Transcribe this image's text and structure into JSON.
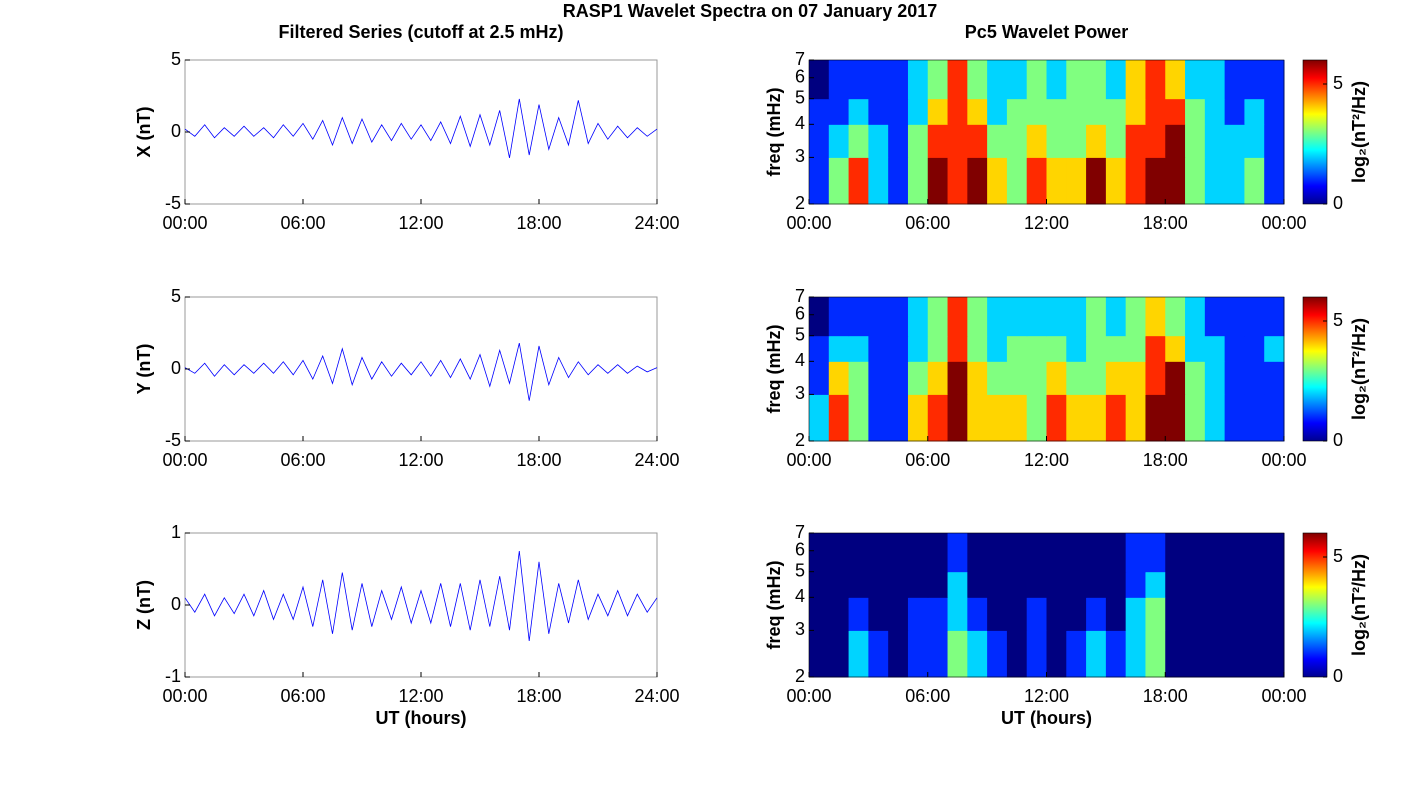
{
  "title": "RASP1 Wavelet Spectra on 07 January 2017",
  "chart_data": [
    {
      "type": "line",
      "title": "Filtered Series (cutoff at 2.5 mHz)",
      "ylabel": "X (nT)",
      "xlim": [
        0,
        24
      ],
      "xticks": [
        {
          "value": 0,
          "label": "00:00"
        },
        {
          "value": 6,
          "label": "06:00"
        },
        {
          "value": 12,
          "label": "12:00"
        },
        {
          "value": 18,
          "label": "18:00"
        },
        {
          "value": 24,
          "label": "24:00"
        }
      ],
      "ylim": [
        -5,
        5
      ],
      "yticks": [
        -5,
        0,
        5
      ],
      "x": [
        0,
        0.5,
        1,
        1.5,
        2,
        2.5,
        3,
        3.5,
        4,
        4.5,
        5,
        5.5,
        6,
        6.5,
        7,
        7.5,
        8,
        8.5,
        9,
        9.5,
        10,
        10.5,
        11,
        11.5,
        12,
        12.5,
        13,
        13.5,
        14,
        14.5,
        15,
        15.5,
        16,
        16.5,
        17,
        17.5,
        18,
        18.5,
        19,
        19.5,
        20,
        20.5,
        21,
        21.5,
        22,
        22.5,
        23,
        23.5,
        24
      ],
      "series": [
        {
          "color": "#0000ff",
          "values": [
            0.2,
            -0.3,
            0.5,
            -0.4,
            0.3,
            -0.3,
            0.4,
            -0.3,
            0.3,
            -0.4,
            0.5,
            -0.3,
            0.6,
            -0.5,
            0.8,
            -0.9,
            1.0,
            -0.8,
            0.9,
            -0.7,
            0.5,
            -0.6,
            0.6,
            -0.5,
            0.5,
            -0.6,
            0.7,
            -0.8,
            1.1,
            -1.0,
            1.2,
            -0.9,
            1.5,
            -1.8,
            2.3,
            -1.6,
            1.9,
            -1.2,
            1.0,
            -0.9,
            2.2,
            -0.8,
            0.6,
            -0.5,
            0.4,
            -0.4,
            0.3,
            -0.3,
            0.2
          ]
        }
      ]
    },
    {
      "type": "heatmap",
      "title": "Pc5 Wavelet Power",
      "ylabel": "freq (mHz)",
      "log_y": true,
      "xlim": [
        0,
        24
      ],
      "xticks": [
        {
          "value": 0,
          "label": "00:00"
        },
        {
          "value": 6,
          "label": "06:00"
        },
        {
          "value": 12,
          "label": "12:00"
        },
        {
          "value": 18,
          "label": "18:00"
        },
        {
          "value": 24,
          "label": "00:00"
        }
      ],
      "ylim": [
        2,
        7
      ],
      "yticks": [
        2,
        3,
        4,
        5,
        6,
        7
      ],
      "xbins": [
        0,
        1,
        2,
        3,
        4,
        5,
        6,
        7,
        8,
        9,
        10,
        11,
        12,
        13,
        14,
        15,
        16,
        17,
        18,
        19,
        20,
        21,
        22,
        23,
        24
      ],
      "ybins": [
        2,
        3,
        4,
        5,
        7
      ],
      "colormap": "jet",
      "clim": [
        0,
        6
      ],
      "cticks": [
        0,
        5
      ],
      "clabel": "log₂(nT²/Hz)",
      "values": [
        [
          1,
          3,
          5,
          2,
          1,
          3,
          6,
          5,
          6,
          4,
          3,
          5,
          4,
          4,
          6,
          4,
          5,
          6,
          6,
          3,
          2,
          2,
          3,
          1
        ],
        [
          1,
          2,
          3,
          2,
          1,
          3,
          5,
          5,
          5,
          3,
          3,
          4,
          3,
          3,
          4,
          3,
          5,
          5,
          6,
          3,
          2,
          2,
          2,
          1
        ],
        [
          1,
          1,
          2,
          1,
          1,
          2,
          4,
          5,
          4,
          2,
          3,
          3,
          3,
          3,
          3,
          3,
          4,
          5,
          5,
          3,
          2,
          1,
          2,
          1
        ],
        [
          0,
          1,
          1,
          1,
          1,
          2,
          3,
          5,
          3,
          2,
          2,
          3,
          2,
          3,
          3,
          2,
          4,
          5,
          4,
          2,
          2,
          1,
          1,
          1
        ]
      ]
    },
    {
      "type": "line",
      "ylabel": "Y (nT)",
      "xlim": [
        0,
        24
      ],
      "xticks": [
        {
          "value": 0,
          "label": "00:00"
        },
        {
          "value": 6,
          "label": "06:00"
        },
        {
          "value": 12,
          "label": "12:00"
        },
        {
          "value": 18,
          "label": "18:00"
        },
        {
          "value": 24,
          "label": "24:00"
        }
      ],
      "ylim": [
        -5,
        5
      ],
      "yticks": [
        -5,
        0,
        5
      ],
      "x": [
        0,
        0.5,
        1,
        1.5,
        2,
        2.5,
        3,
        3.5,
        4,
        4.5,
        5,
        5.5,
        6,
        6.5,
        7,
        7.5,
        8,
        8.5,
        9,
        9.5,
        10,
        10.5,
        11,
        11.5,
        12,
        12.5,
        13,
        13.5,
        14,
        14.5,
        15,
        15.5,
        16,
        16.5,
        17,
        17.5,
        18,
        18.5,
        19,
        19.5,
        20,
        20.5,
        21,
        21.5,
        22,
        22.5,
        23,
        23.5,
        24
      ],
      "series": [
        {
          "color": "#0000ff",
          "values": [
            0.1,
            -0.3,
            0.4,
            -0.5,
            0.3,
            -0.4,
            0.3,
            -0.3,
            0.4,
            -0.3,
            0.5,
            -0.4,
            0.6,
            -0.7,
            0.9,
            -1.0,
            1.4,
            -1.1,
            0.8,
            -0.7,
            0.5,
            -0.5,
            0.4,
            -0.4,
            0.5,
            -0.5,
            0.6,
            -0.6,
            0.7,
            -0.7,
            1.0,
            -1.2,
            1.3,
            -1.0,
            1.8,
            -2.2,
            1.6,
            -1.1,
            0.8,
            -0.6,
            0.5,
            -0.4,
            0.3,
            -0.3,
            0.3,
            -0.3,
            0.2,
            -0.2,
            0.1
          ]
        }
      ]
    },
    {
      "type": "heatmap",
      "ylabel": "freq (mHz)",
      "log_y": true,
      "xlim": [
        0,
        24
      ],
      "xticks": [
        {
          "value": 0,
          "label": "00:00"
        },
        {
          "value": 6,
          "label": "06:00"
        },
        {
          "value": 12,
          "label": "12:00"
        },
        {
          "value": 18,
          "label": "18:00"
        },
        {
          "value": 24,
          "label": "00:00"
        }
      ],
      "ylim": [
        2,
        7
      ],
      "yticks": [
        2,
        3,
        4,
        5,
        6,
        7
      ],
      "xbins": [
        0,
        1,
        2,
        3,
        4,
        5,
        6,
        7,
        8,
        9,
        10,
        11,
        12,
        13,
        14,
        15,
        16,
        17,
        18,
        19,
        20,
        21,
        22,
        23,
        24
      ],
      "ybins": [
        2,
        3,
        4,
        5,
        7
      ],
      "colormap": "jet",
      "clim": [
        0,
        6
      ],
      "cticks": [
        0,
        5
      ],
      "clabel": "log₂(nT²/Hz)",
      "values": [
        [
          2,
          5,
          3,
          1,
          1,
          4,
          5,
          6,
          4,
          4,
          4,
          3,
          5,
          4,
          4,
          5,
          4,
          6,
          6,
          3,
          2,
          1,
          1,
          1
        ],
        [
          1,
          4,
          3,
          1,
          1,
          3,
          4,
          6,
          4,
          3,
          3,
          3,
          4,
          3,
          3,
          4,
          4,
          5,
          6,
          3,
          2,
          1,
          1,
          1
        ],
        [
          1,
          2,
          2,
          1,
          1,
          2,
          3,
          5,
          3,
          2,
          3,
          3,
          3,
          2,
          3,
          3,
          3,
          5,
          4,
          2,
          2,
          1,
          1,
          2
        ],
        [
          0,
          1,
          1,
          1,
          1,
          2,
          3,
          5,
          3,
          2,
          2,
          2,
          2,
          2,
          3,
          2,
          3,
          4,
          3,
          2,
          1,
          1,
          1,
          1
        ]
      ]
    },
    {
      "type": "line",
      "ylabel": "Z (nT)",
      "xlabel": "UT (hours)",
      "xlim": [
        0,
        24
      ],
      "xticks": [
        {
          "value": 0,
          "label": "00:00"
        },
        {
          "value": 6,
          "label": "06:00"
        },
        {
          "value": 12,
          "label": "12:00"
        },
        {
          "value": 18,
          "label": "18:00"
        },
        {
          "value": 24,
          "label": "24:00"
        }
      ],
      "ylim": [
        -1,
        1
      ],
      "yticks": [
        -1,
        0,
        1
      ],
      "x": [
        0,
        0.5,
        1,
        1.5,
        2,
        2.5,
        3,
        3.5,
        4,
        4.5,
        5,
        5.5,
        6,
        6.5,
        7,
        7.5,
        8,
        8.5,
        9,
        9.5,
        10,
        10.5,
        11,
        11.5,
        12,
        12.5,
        13,
        13.5,
        14,
        14.5,
        15,
        15.5,
        16,
        16.5,
        17,
        17.5,
        18,
        18.5,
        19,
        19.5,
        20,
        20.5,
        21,
        21.5,
        22,
        22.5,
        23,
        23.5,
        24
      ],
      "series": [
        {
          "color": "#0000ff",
          "values": [
            0.1,
            -0.1,
            0.15,
            -0.15,
            0.1,
            -0.12,
            0.15,
            -0.15,
            0.2,
            -0.2,
            0.15,
            -0.2,
            0.25,
            -0.3,
            0.35,
            -0.4,
            0.45,
            -0.35,
            0.3,
            -0.3,
            0.2,
            -0.2,
            0.25,
            -0.25,
            0.2,
            -0.25,
            0.3,
            -0.3,
            0.3,
            -0.35,
            0.35,
            -0.3,
            0.4,
            -0.35,
            0.75,
            -0.5,
            0.6,
            -0.4,
            0.3,
            -0.25,
            0.35,
            -0.2,
            0.15,
            -0.15,
            0.2,
            -0.15,
            0.15,
            -0.1,
            0.1
          ]
        }
      ]
    },
    {
      "type": "heatmap",
      "ylabel": "freq (mHz)",
      "xlabel": "UT (hours)",
      "log_y": true,
      "xlim": [
        0,
        24
      ],
      "xticks": [
        {
          "value": 0,
          "label": "00:00"
        },
        {
          "value": 6,
          "label": "06:00"
        },
        {
          "value": 12,
          "label": "12:00"
        },
        {
          "value": 18,
          "label": "18:00"
        },
        {
          "value": 24,
          "label": "00:00"
        }
      ],
      "ylim": [
        2,
        7
      ],
      "yticks": [
        2,
        3,
        4,
        5,
        6,
        7
      ],
      "xbins": [
        0,
        1,
        2,
        3,
        4,
        5,
        6,
        7,
        8,
        9,
        10,
        11,
        12,
        13,
        14,
        15,
        16,
        17,
        18,
        19,
        20,
        21,
        22,
        23,
        24
      ],
      "ybins": [
        2,
        3,
        4,
        5,
        7
      ],
      "colormap": "jet",
      "clim": [
        0,
        6
      ],
      "cticks": [
        0,
        5
      ],
      "clabel": "log₂(nT²/Hz)",
      "values": [
        [
          0,
          0,
          2,
          1,
          0,
          1,
          1,
          3,
          2,
          1,
          0,
          1,
          0,
          1,
          2,
          1,
          2,
          3,
          0,
          0,
          0,
          0,
          0,
          0
        ],
        [
          0,
          0,
          1,
          0,
          0,
          1,
          1,
          2,
          1,
          0,
          0,
          1,
          0,
          0,
          1,
          0,
          2,
          3,
          0,
          0,
          0,
          0,
          0,
          0
        ],
        [
          0,
          0,
          0,
          0,
          0,
          0,
          0,
          2,
          0,
          0,
          0,
          0,
          0,
          0,
          0,
          0,
          1,
          2,
          0,
          0,
          0,
          0,
          0,
          0
        ],
        [
          0,
          0,
          0,
          0,
          0,
          0,
          0,
          1,
          0,
          0,
          0,
          0,
          0,
          0,
          0,
          0,
          1,
          1,
          0,
          0,
          0,
          0,
          0,
          0
        ]
      ]
    }
  ]
}
